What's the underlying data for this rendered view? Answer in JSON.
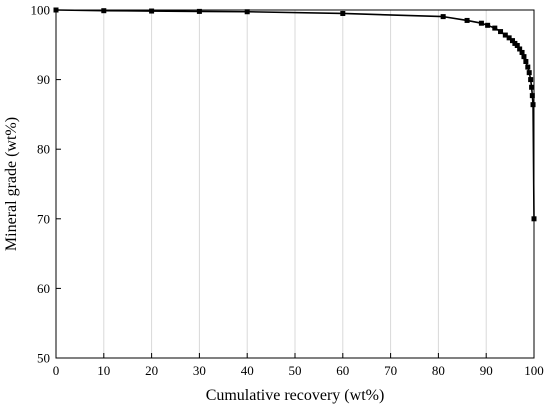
{
  "chart_data": {
    "type": "line",
    "title": "",
    "xlabel": "Cumulative recovery (wt%)",
    "ylabel": "Mineral grade (wt%)",
    "xlim": [
      0,
      100
    ],
    "ylim": [
      50,
      100
    ],
    "xticks": [
      0,
      10,
      20,
      30,
      40,
      50,
      60,
      70,
      80,
      90,
      100
    ],
    "yticks": [
      50,
      60,
      70,
      80,
      90,
      100
    ],
    "grid": "vertical",
    "legend": "none",
    "marker": "square",
    "line_color": "#000000",
    "grid_color": "#d9d9d9",
    "series": [
      {
        "points": [
          [
            0,
            100.0
          ],
          [
            10,
            99.9
          ],
          [
            20,
            99.85
          ],
          [
            30,
            99.8
          ],
          [
            40,
            99.75
          ],
          [
            60,
            99.5
          ],
          [
            81,
            99.05
          ],
          [
            86,
            98.5
          ],
          [
            89,
            98.1
          ],
          [
            90.3,
            97.8
          ],
          [
            91.8,
            97.4
          ],
          [
            93.0,
            96.9
          ],
          [
            94.0,
            96.4
          ],
          [
            94.8,
            96.0
          ],
          [
            95.5,
            95.6
          ],
          [
            96.0,
            95.2
          ],
          [
            96.5,
            94.9
          ],
          [
            97.0,
            94.4
          ],
          [
            97.5,
            93.9
          ],
          [
            97.9,
            93.3
          ],
          [
            98.3,
            92.6
          ],
          [
            98.7,
            91.8
          ],
          [
            99.0,
            91.0
          ],
          [
            99.3,
            90.0
          ],
          [
            99.5,
            88.9
          ],
          [
            99.65,
            87.7
          ],
          [
            99.8,
            86.4
          ],
          [
            100,
            70.0
          ]
        ]
      }
    ]
  }
}
